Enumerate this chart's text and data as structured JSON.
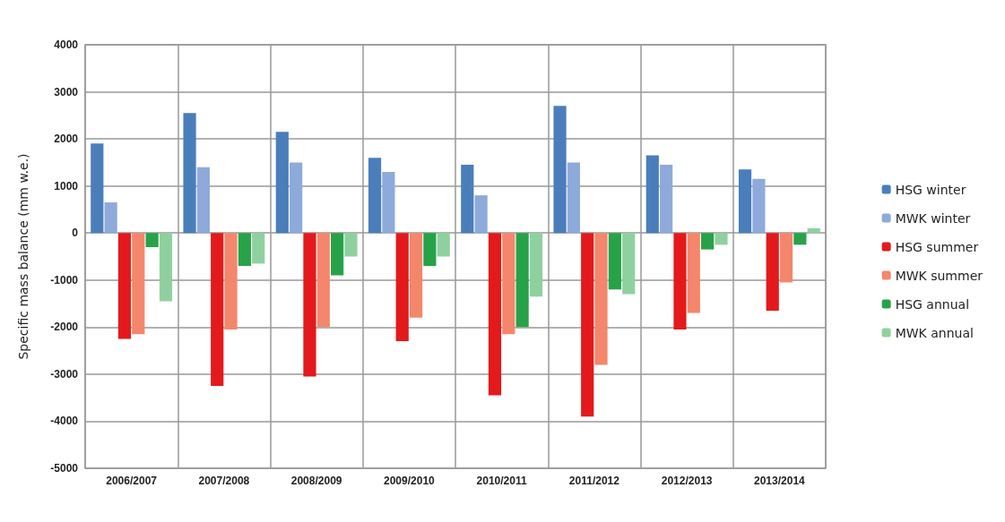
{
  "chart_data": {
    "type": "bar",
    "ylabel": "Specific mass balance (mm w.e.)",
    "categories": [
      "2006/2007",
      "2007/2008",
      "2008/2009",
      "2009/2010",
      "2010/2011",
      "2011/2012",
      "2012/2013",
      "2013/2014"
    ],
    "series": [
      {
        "name": "HSG winter",
        "color": "#4a7ebb",
        "values": [
          1900,
          2550,
          2150,
          1600,
          1450,
          2700,
          1650,
          1350
        ]
      },
      {
        "name": "MWK winter",
        "color": "#8eaadb",
        "values": [
          650,
          1400,
          1500,
          1300,
          800,
          1500,
          1450,
          1150
        ]
      },
      {
        "name": "HSG summer",
        "color": "#e3191c",
        "values": [
          -2250,
          -3250,
          -3050,
          -2300,
          -3450,
          -3900,
          -2050,
          -1650
        ]
      },
      {
        "name": "MWK summer",
        "color": "#f4866b",
        "values": [
          -2150,
          -2050,
          -2000,
          -1800,
          -2150,
          -2800,
          -1700,
          -1050
        ]
      },
      {
        "name": "HSG annual",
        "color": "#27a249",
        "values": [
          -300,
          -700,
          -900,
          -700,
          -2000,
          -1200,
          -350,
          -250
        ]
      },
      {
        "name": "MWK annual",
        "color": "#8fd19e",
        "values": [
          -1450,
          -650,
          -500,
          -500,
          -1350,
          -1300,
          -250,
          100
        ]
      }
    ],
    "ylim": [
      -5000,
      4000
    ],
    "yticks": [
      -5000,
      -4000,
      -3000,
      -2000,
      -1000,
      0,
      1000,
      2000,
      3000,
      4000
    ],
    "grid": true,
    "legend": "right"
  }
}
